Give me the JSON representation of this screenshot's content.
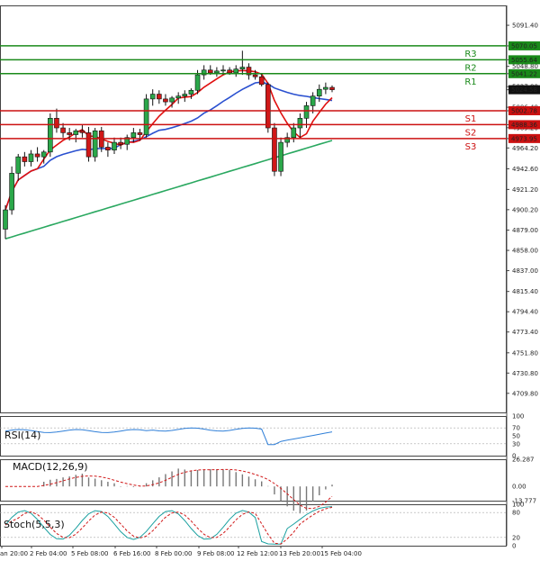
{
  "chart_data": {
    "type": "candlestick",
    "price_axis": {
      "ylim": [
        4690,
        5112
      ],
      "ticks": [
        "5091.40",
        "5070.05",
        "5055.64",
        "5048.80",
        "5041.22",
        "5027.80",
        "5024.58",
        "5006.40",
        "5002.78",
        "4988.36",
        "4985.20",
        "4973.95",
        "4964.20",
        "4942.60",
        "4921.20",
        "4900.20",
        "4879.00",
        "4858.00",
        "4837.00",
        "4815.40",
        "4794.40",
        "4773.40",
        "4751.80",
        "4730.80",
        "4709.80"
      ]
    },
    "levels": [
      {
        "label": "R3",
        "value": 5070.05,
        "tag": "5070.05",
        "color": "#1a8a1a"
      },
      {
        "label": "R2",
        "value": 5055.64,
        "tag": "5055.64",
        "color": "#1a8a1a"
      },
      {
        "label": "R1",
        "value": 5041.22,
        "tag": "5041.22",
        "color": "#1a8a1a"
      },
      {
        "label": "S1",
        "value": 5002.78,
        "tag": "5002.78",
        "color": "#cc1111"
      },
      {
        "label": "S2",
        "value": 4988.36,
        "tag": "4988.36",
        "color": "#cc1111"
      },
      {
        "label": "S3",
        "value": 4973.95,
        "tag": "4973.95",
        "color": "#cc1111"
      }
    ],
    "current_price": "5024.58",
    "x_labels": [
      "an 20:00",
      "2 Feb 04:00",
      "5 Feb 08:00",
      "6 Feb 16:00",
      "8 Feb 00:00",
      "9 Feb 08:00",
      "12 Feb 12:00",
      "13 Feb 20:00",
      "15 Feb 04:00"
    ],
    "candles": [
      [
        4880,
        4905,
        4870,
        4900
      ],
      [
        4900,
        4945,
        4895,
        4938
      ],
      [
        4938,
        4958,
        4930,
        4955
      ],
      [
        4955,
        4960,
        4945,
        4950
      ],
      [
        4950,
        4962,
        4945,
        4958
      ],
      [
        4958,
        4965,
        4950,
        4955
      ],
      [
        4955,
        4962,
        4948,
        4960
      ],
      [
        4960,
        5000,
        4955,
        4995
      ],
      [
        4995,
        5005,
        4980,
        4985
      ],
      [
        4985,
        4990,
        4975,
        4980
      ],
      [
        4980,
        4985,
        4972,
        4978
      ],
      [
        4978,
        4984,
        4970,
        4982
      ],
      [
        4982,
        4988,
        4975,
        4980
      ],
      [
        4980,
        4986,
        4950,
        4955
      ],
      [
        4955,
        4985,
        4950,
        4982
      ],
      [
        4982,
        4986,
        4960,
        4965
      ],
      [
        4965,
        4970,
        4955,
        4962
      ],
      [
        4962,
        4975,
        4958,
        4970
      ],
      [
        4970,
        4975,
        4963,
        4968
      ],
      [
        4968,
        4978,
        4962,
        4975
      ],
      [
        4975,
        4985,
        4970,
        4980
      ],
      [
        4980,
        4984,
        4972,
        4978
      ],
      [
        4978,
        5020,
        4975,
        5015
      ],
      [
        5015,
        5025,
        5008,
        5020
      ],
      [
        5020,
        5024,
        5010,
        5015
      ],
      [
        5015,
        5020,
        5008,
        5012
      ],
      [
        5012,
        5018,
        5006,
        5016
      ],
      [
        5016,
        5022,
        5010,
        5018
      ],
      [
        5018,
        5024,
        5012,
        5020
      ],
      [
        5020,
        5026,
        5015,
        5024
      ],
      [
        5024,
        5045,
        5020,
        5040
      ],
      [
        5040,
        5050,
        5035,
        5045
      ],
      [
        5045,
        5050,
        5040,
        5042
      ],
      [
        5042,
        5048,
        5038,
        5044
      ],
      [
        5044,
        5050,
        5040,
        5045
      ],
      [
        5045,
        5048,
        5040,
        5042
      ],
      [
        5042,
        5050,
        5038,
        5046
      ],
      [
        5046,
        5065,
        5040,
        5048
      ],
      [
        5048,
        5052,
        5035,
        5040
      ],
      [
        5040,
        5045,
        5035,
        5038
      ],
      [
        5038,
        5042,
        5028,
        5030
      ],
      [
        5030,
        5032,
        4980,
        4985
      ],
      [
        4985,
        4990,
        4935,
        4940
      ],
      [
        4940,
        4975,
        4935,
        4970
      ],
      [
        4970,
        4980,
        4965,
        4975
      ],
      [
        4975,
        4990,
        4970,
        4985
      ],
      [
        4985,
        5000,
        4975,
        4995
      ],
      [
        4995,
        5012,
        4985,
        5008
      ],
      [
        5008,
        5022,
        5000,
        5018
      ],
      [
        5018,
        5030,
        5012,
        5025
      ],
      [
        5025,
        5032,
        5020,
        5027
      ],
      [
        5027,
        5029,
        5022,
        5024.58
      ]
    ],
    "ma_fast_color": "#e01010",
    "ma_mid_color": "#2a50d0",
    "ma_slow_color": "#2aa860",
    "indicators": [
      {
        "name": "RSI(14)",
        "ticks": [
          "100",
          "70",
          "50",
          "30",
          "0"
        ],
        "ylim": [
          0,
          100
        ]
      },
      {
        "name": "MACD(12,26,9)",
        "ticks": [
          "26.287",
          "0.00",
          "-13.777"
        ],
        "ylim": [
          -13.777,
          26.287
        ]
      },
      {
        "name": "Stoch(5,5,3)",
        "ticks": [
          "100",
          "80",
          "20",
          "0"
        ],
        "ylim": [
          0,
          100
        ]
      }
    ]
  }
}
